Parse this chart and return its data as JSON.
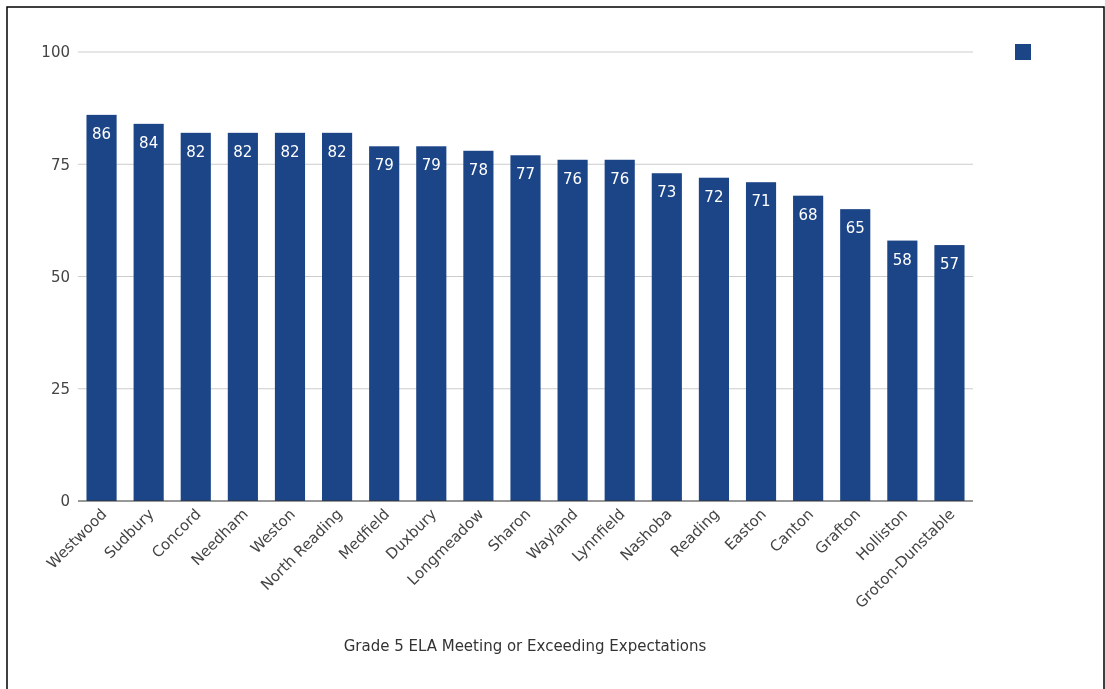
{
  "chart_data": {
    "type": "bar",
    "xlabel": "Grade 5 ELA Meeting or Exceeding Expectations",
    "categories": [
      "Westwood",
      "Sudbury",
      "Concord",
      "Needham",
      "Weston",
      "North Reading",
      "Medfield",
      "Duxbury",
      "Longmeadow",
      "Sharon",
      "Wayland",
      "Lynnfield",
      "Nashoba",
      "Reading",
      "Easton",
      "Canton",
      "Grafton",
      "Holliston",
      "Groton-Dunstable"
    ],
    "series": [
      {
        "color": "#1c4587",
        "values": [
          86,
          84,
          82,
          82,
          82,
          82,
          79,
          79,
          78,
          77,
          76,
          76,
          73,
          72,
          71,
          68,
          65,
          58,
          57
        ]
      }
    ],
    "ylim": [
      0,
      100
    ],
    "yticks": [
      0,
      25,
      50,
      75,
      100
    ],
    "grid": "y",
    "data_labels": true
  }
}
